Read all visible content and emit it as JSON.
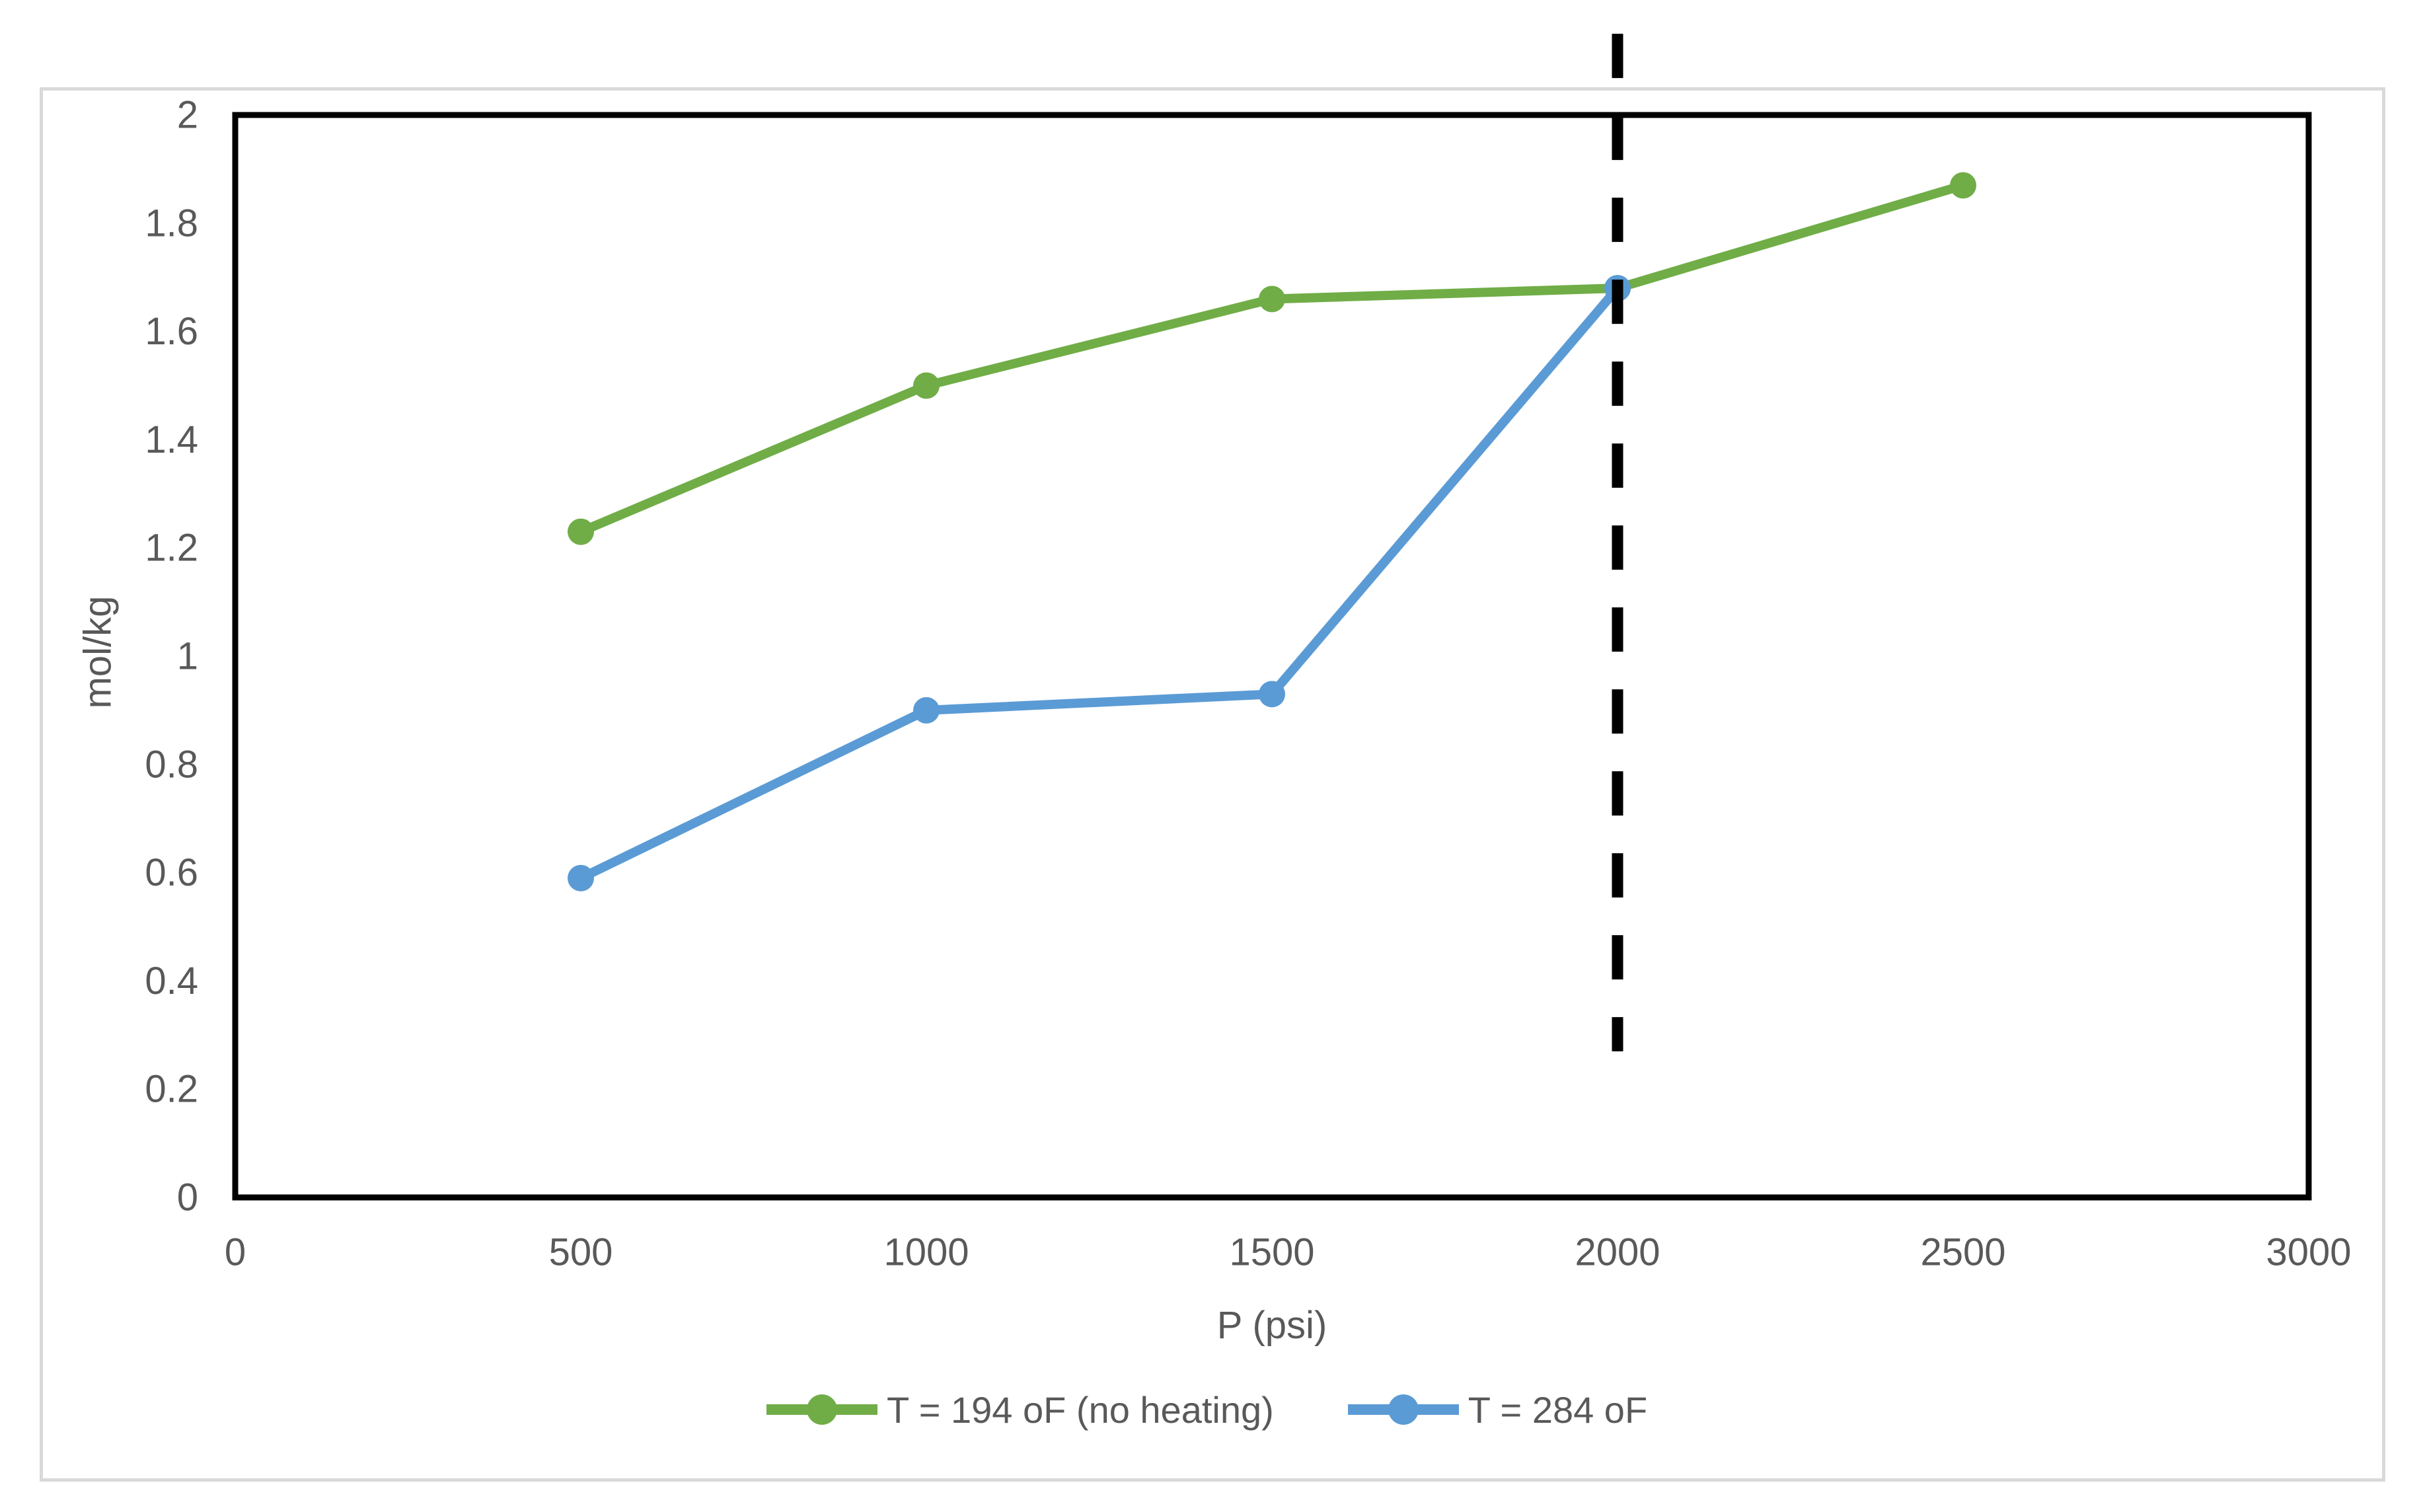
{
  "chart_data": {
    "type": "line",
    "title": "",
    "xlabel": "P (psi)",
    "ylabel": "mol/kg",
    "xlim": [
      0,
      3000
    ],
    "ylim": [
      0,
      2
    ],
    "x_ticks": [
      "0",
      "500",
      "1000",
      "1500",
      "2000",
      "2500",
      "3000"
    ],
    "x_tick_values": [
      0,
      500,
      1000,
      1500,
      2000,
      2500,
      3000
    ],
    "y_ticks": [
      "0",
      "0.2",
      "0.4",
      "0.6",
      "0.8",
      "1",
      "1.2",
      "1.4",
      "1.6",
      "1.8",
      "2"
    ],
    "y_tick_values": [
      0,
      0.2,
      0.4,
      0.6,
      0.8,
      1,
      1.2,
      1.4,
      1.6,
      1.8,
      2
    ],
    "grid": false,
    "legend_position": "bottom",
    "series": [
      {
        "name": "T = 194 oF (no heating)",
        "color": "#70AD47",
        "marker": "circle",
        "x": [
          500,
          1000,
          1500,
          2000,
          2500
        ],
        "y": [
          1.23,
          1.5,
          1.66,
          1.68,
          1.87
        ]
      },
      {
        "name": "T = 284 oF",
        "color": "#5B9BD5",
        "marker": "circle",
        "x": [
          500,
          1000,
          1500,
          2000
        ],
        "y": [
          0.59,
          0.9,
          0.93,
          1.68
        ]
      }
    ],
    "annotation": {
      "type": "vertical-dashed-line",
      "x": 2000,
      "y_from": 0.27,
      "y_to": 2.15,
      "color": "#000000"
    }
  },
  "colors": {
    "plot_border": "#000000",
    "frame_border": "#D9D9D9",
    "tick_text": "#595959",
    "background": "#FFFFFF"
  }
}
